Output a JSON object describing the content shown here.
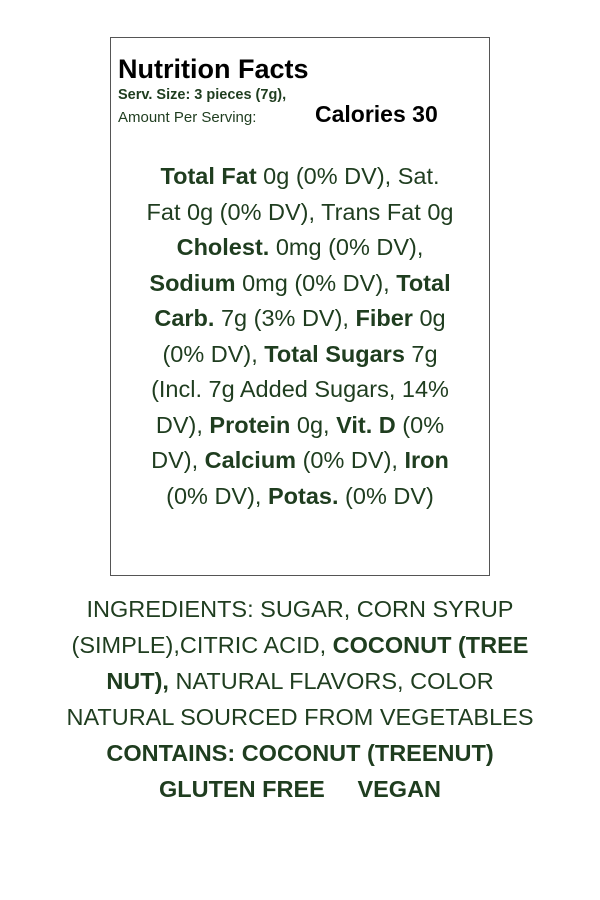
{
  "label": {
    "title": "Nutrition Facts",
    "serving_size": "Serv. Size: 3 pieces (7g),",
    "amount_per_serving": "Amount Per Serving:",
    "calories": "Calories 30",
    "facts_lines": [
      [
        {
          "text": "Total Fat",
          "bold": true
        },
        {
          "text": " 0g (0% DV), Sat.",
          "bold": false
        }
      ],
      [
        {
          "text": "Fat 0g (0% DV), Trans Fat 0g",
          "bold": false
        }
      ],
      [
        {
          "text": "Cholest.",
          "bold": true
        },
        {
          "text": " 0mg (0% DV),",
          "bold": false
        }
      ],
      [
        {
          "text": "Sodium",
          "bold": true
        },
        {
          "text": " 0mg (0% DV), ",
          "bold": false
        },
        {
          "text": "Total",
          "bold": true
        }
      ],
      [
        {
          "text": "Carb.",
          "bold": true
        },
        {
          "text": " 7g (3% DV), ",
          "bold": false
        },
        {
          "text": "Fiber",
          "bold": true
        },
        {
          "text": " 0g",
          "bold": false
        }
      ],
      [
        {
          "text": "(0% DV), ",
          "bold": false
        },
        {
          "text": "Total Sugars",
          "bold": true
        },
        {
          "text": " 7g",
          "bold": false
        }
      ],
      [
        {
          "text": "(Incl. 7g Added Sugars, 14%",
          "bold": false
        }
      ],
      [
        {
          "text": "DV), ",
          "bold": false
        },
        {
          "text": "Protein",
          "bold": true
        },
        {
          "text": " 0g, ",
          "bold": false
        },
        {
          "text": "Vit. D",
          "bold": true
        },
        {
          "text": " (0%",
          "bold": false
        }
      ],
      [
        {
          "text": "DV), ",
          "bold": false
        },
        {
          "text": "Calcium",
          "bold": true
        },
        {
          "text": " (0% DV), ",
          "bold": false
        },
        {
          "text": "Iron",
          "bold": true
        }
      ],
      [
        {
          "text": "(0% DV), ",
          "bold": false
        },
        {
          "text": "Potas.",
          "bold": true
        },
        {
          "text": " (0% DV)",
          "bold": false
        }
      ]
    ]
  },
  "ingredients_lines": [
    [
      {
        "text": "INGREDIENTS: SUGAR, CORN SYRUP",
        "bold": false
      }
    ],
    [
      {
        "text": "(SIMPLE),CITRIC ACID, ",
        "bold": false
      },
      {
        "text": "COCONUT (TREE",
        "bold": true
      }
    ],
    [
      {
        "text": "NUT),",
        "bold": true
      },
      {
        "text": " NATURAL FLAVORS, COLOR",
        "bold": false
      }
    ],
    [
      {
        "text": "NATURAL SOURCED FROM VEGETABLES",
        "bold": false
      }
    ],
    [
      {
        "text": "CONTAINS: COCONUT (TREENUT)",
        "bold": true
      }
    ],
    [
      {
        "text": "GLUTEN FREE     VEGAN",
        "bold": true
      }
    ]
  ],
  "colors": {
    "text_green": "#1f3d1f",
    "heading": "#000000",
    "border": "#555555"
  }
}
